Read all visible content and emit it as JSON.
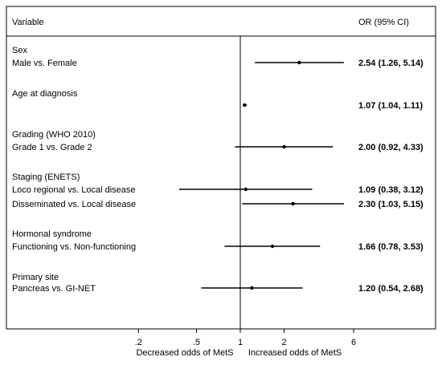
{
  "chart_data": {
    "type": "forest",
    "header": {
      "variable": "Variable",
      "estimate": "OR (95% CI)"
    },
    "x_scale": "log",
    "xlim": [
      0.1,
      10
    ],
    "null_line": 1,
    "ticks": [
      {
        "value": 0.2,
        "label": ".2"
      },
      {
        "value": 0.5,
        "label": ".5"
      },
      {
        "value": 1,
        "label": "1"
      },
      {
        "value": 2,
        "label": "2"
      },
      {
        "value": 6,
        "label": "6"
      }
    ],
    "xlabel_left": "Decreased odds of MetS",
    "xlabel_right": "Increased odds of MetS",
    "groups": [
      {
        "title": "Sex",
        "rows": [
          {
            "label": "Male vs. Female",
            "or": 2.54,
            "lo": 1.26,
            "hi": 5.14,
            "text": "2.54 (1.26, 5.14)"
          }
        ]
      },
      {
        "title": "Age at diagnosis",
        "rows": [
          {
            "label": "",
            "or": 1.07,
            "lo": 1.04,
            "hi": 1.11,
            "text": "1.07 (1.04, 1.11)"
          }
        ]
      },
      {
        "title": "Grading (WHO 2010)",
        "rows": [
          {
            "label": "Grade 1 vs. Grade 2",
            "or": 2.0,
            "lo": 0.92,
            "hi": 4.33,
            "text": "2.00 (0.92, 4.33)"
          }
        ]
      },
      {
        "title": "Staging (ENETS)",
        "rows": [
          {
            "label": "Loco regional vs. Local disease",
            "or": 1.09,
            "lo": 0.38,
            "hi": 3.12,
            "text": "1.09 (0.38, 3.12)"
          },
          {
            "label": "Disseminated vs. Local disease",
            "or": 2.3,
            "lo": 1.03,
            "hi": 5.15,
            "text": "2.30 (1.03, 5.15)"
          }
        ]
      },
      {
        "title": "Hormonal syndrome",
        "rows": [
          {
            "label": "Functioning vs. Non-functioning",
            "or": 1.66,
            "lo": 0.78,
            "hi": 3.53,
            "text": "1.66 (0.78, 3.53)"
          }
        ]
      },
      {
        "title": "Primary site",
        "rows": [
          {
            "label": "Pancreas vs. GI-NET",
            "or": 1.2,
            "lo": 0.54,
            "hi": 2.68,
            "text": "1.20 (0.54, 2.68)"
          }
        ]
      }
    ]
  }
}
